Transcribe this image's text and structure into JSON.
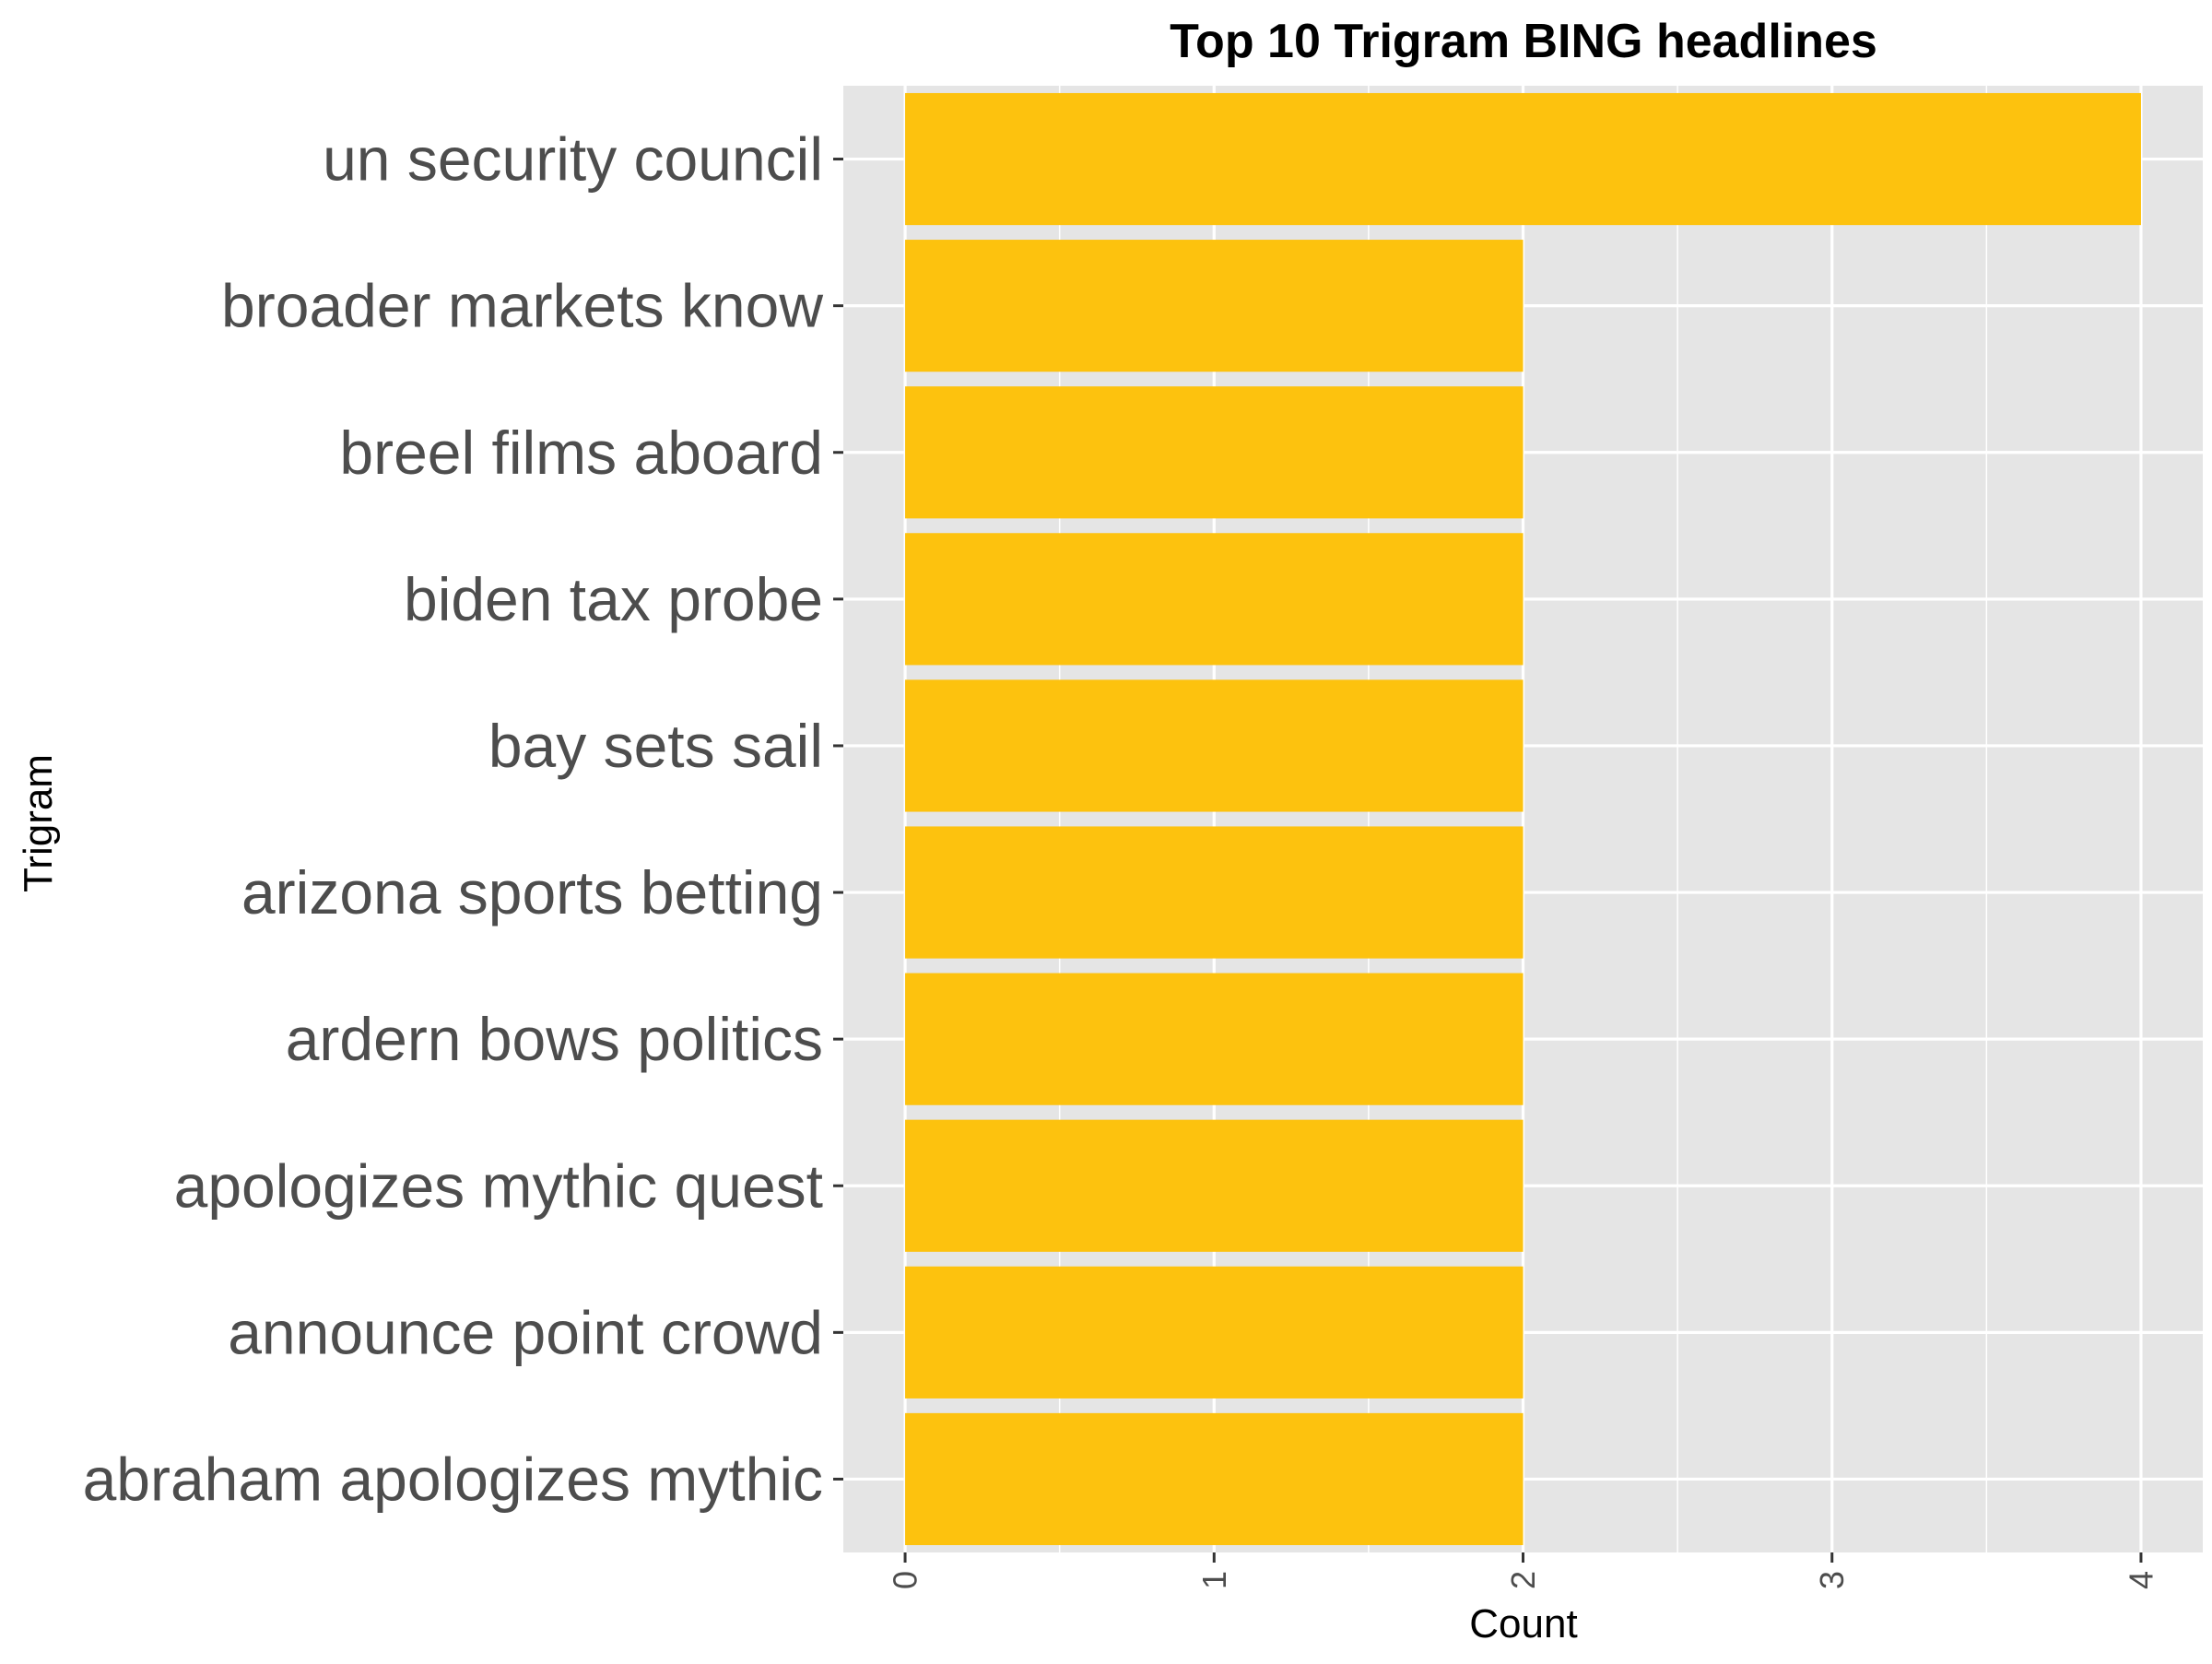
{
  "colors": {
    "panel_background": "#e5e5e5",
    "grid": "#ffffff",
    "bar_fill": "#fdc20e",
    "tick_text": "#4d4d4d"
  },
  "chart_data": {
    "type": "bar",
    "orientation": "horizontal",
    "title": "Top 10 Trigram BING headlines",
    "xlabel": "Count",
    "ylabel": "Trigram",
    "categories": [
      "un security council",
      "broader markets know",
      "breel films aboard",
      "biden tax probe",
      "bay sets sail",
      "arizona sports betting",
      "ardern bows politics",
      "apologizes mythic quest",
      "announce point crowd",
      "abraham apologizes mythic"
    ],
    "values": [
      4,
      2,
      2,
      2,
      2,
      2,
      2,
      2,
      2,
      2
    ],
    "xlim": [
      -0.2,
      4.2
    ],
    "xticks": [
      "0",
      "1",
      "2",
      "3",
      "4"
    ],
    "grid": true,
    "legend": "none"
  }
}
